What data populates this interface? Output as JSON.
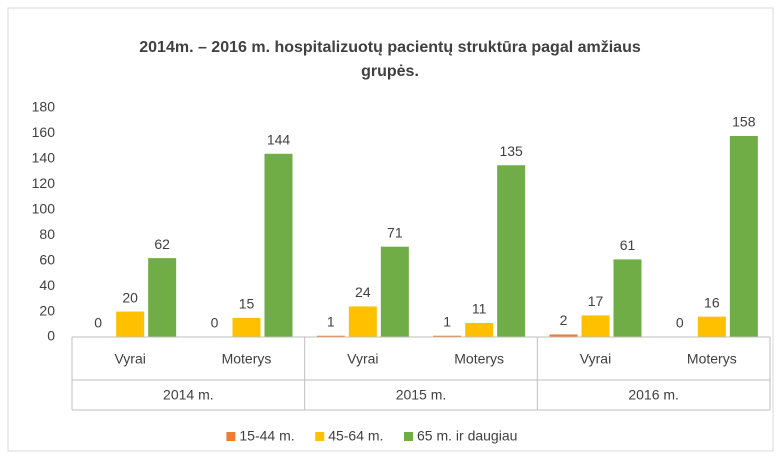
{
  "chart_data": {
    "type": "bar",
    "title": "2014m. – 2016 m.  hospitalizuotų pacientų struktūra pagal amžiaus grupės.",
    "categories": [
      "Vyrai",
      "Moterys",
      "Vyrai",
      "Moterys",
      "Vyrai",
      "Moterys"
    ],
    "groups": [
      "2014 m.",
      "2015 m.",
      "2016 m."
    ],
    "series": [
      {
        "name": "15-44 m.",
        "color": "#ED7D31",
        "values": [
          0,
          0,
          1,
          1,
          2,
          0
        ]
      },
      {
        "name": "45-64 m.",
        "color": "#FFC000",
        "values": [
          20,
          15,
          24,
          11,
          17,
          16
        ]
      },
      {
        "name": "65 m. ir daugiau",
        "color": "#70AD47",
        "values": [
          62,
          144,
          71,
          135,
          61,
          158
        ]
      }
    ],
    "ylim": [
      0,
      180
    ],
    "yticks": [
      0,
      20,
      40,
      60,
      80,
      100,
      120,
      140,
      160,
      180
    ],
    "grid": false,
    "legend": "bottom"
  }
}
